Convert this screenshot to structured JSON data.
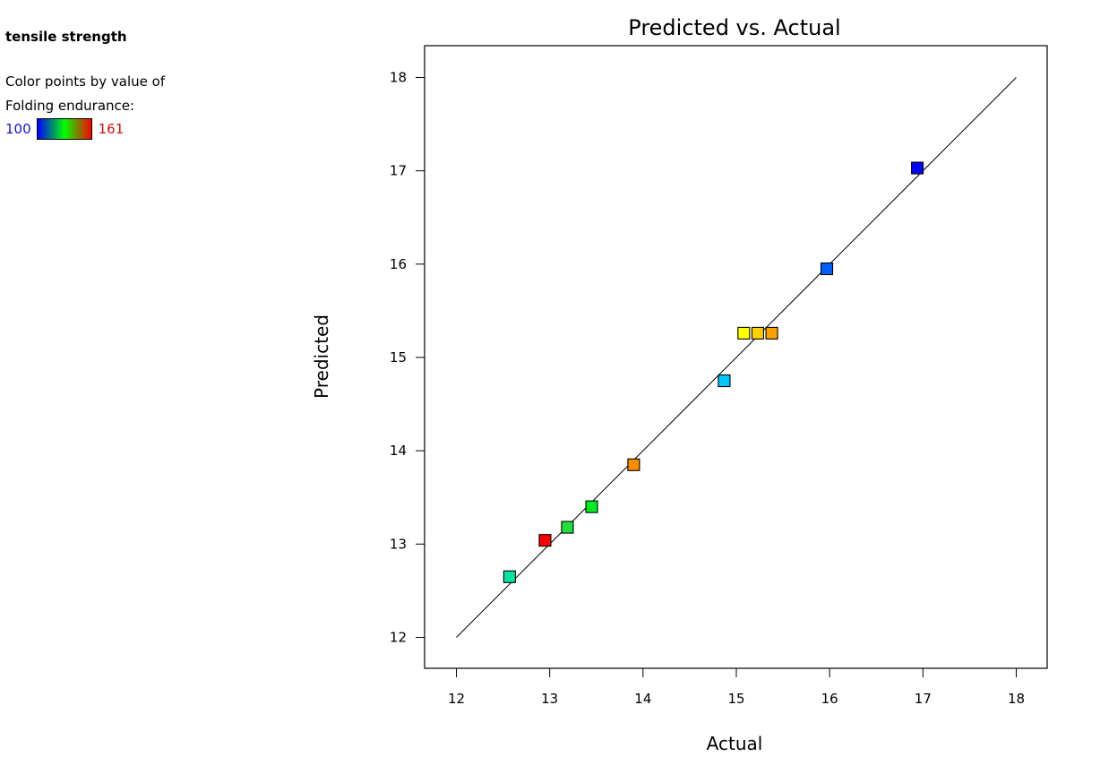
{
  "legend": {
    "response_name": "tensile strength",
    "color_line1": "Color points by value of",
    "color_line2": "Folding endurance:",
    "min_value": "100",
    "max_value": "161",
    "gradient_colors": [
      "#0000ff",
      "#00ff00",
      "#ff0000"
    ]
  },
  "chart_data": {
    "type": "scatter",
    "title": "Predicted vs. Actual",
    "xlabel": "Actual",
    "ylabel": "Predicted",
    "xlim": [
      12,
      18
    ],
    "ylim": [
      12,
      18
    ],
    "xticks": [
      "12",
      "13",
      "14",
      "15",
      "16",
      "17",
      "18"
    ],
    "yticks": [
      "12",
      "13",
      "14",
      "15",
      "16",
      "17",
      "18"
    ],
    "grid": false,
    "reference_line": {
      "from": [
        12,
        12
      ],
      "to": [
        18,
        18
      ]
    },
    "points": [
      {
        "x": 12.57,
        "y": 12.65,
        "color": "#00e6a0"
      },
      {
        "x": 12.95,
        "y": 13.04,
        "color": "#ff0000"
      },
      {
        "x": 13.19,
        "y": 13.18,
        "color": "#20e040"
      },
      {
        "x": 13.45,
        "y": 13.4,
        "color": "#00ee20"
      },
      {
        "x": 13.9,
        "y": 13.85,
        "color": "#ff8c00"
      },
      {
        "x": 14.87,
        "y": 14.75,
        "color": "#00c8ff"
      },
      {
        "x": 15.08,
        "y": 15.26,
        "color": "#ffff00"
      },
      {
        "x": 15.23,
        "y": 15.26,
        "color": "#ffd000"
      },
      {
        "x": 15.38,
        "y": 15.26,
        "color": "#ffa000"
      },
      {
        "x": 15.97,
        "y": 15.95,
        "color": "#0060ff"
      },
      {
        "x": 16.94,
        "y": 17.03,
        "color": "#0000ff"
      }
    ]
  }
}
